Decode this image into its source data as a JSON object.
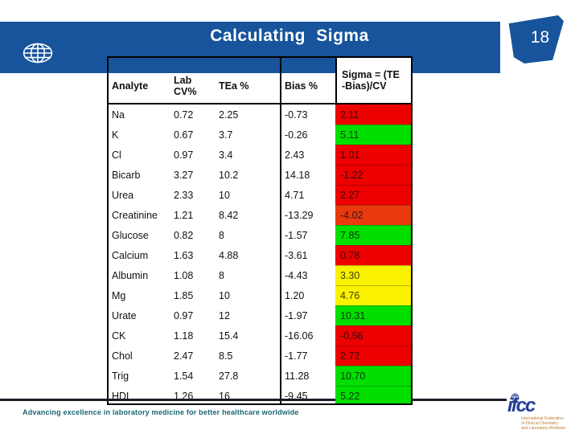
{
  "slide": {
    "title": "Calculating Sigma",
    "page_number": "18",
    "footer_text": "Advancing excellence in laboratory medicine for better healthcare worldwide"
  },
  "logo": {
    "wordmark": "ifcc",
    "tagline_line1": "International Federation",
    "tagline_line2": "of Clinical Chemistry",
    "tagline_line3": "and Laboratory Medicine"
  },
  "colors": {
    "band_blue": "#17549B",
    "logo_blue": "#243F96",
    "footer_teal": "#176572",
    "red": "#EE0000",
    "orangered": "#E83A0E",
    "green": "#00DF00",
    "yellow": "#FBF200"
  },
  "table": {
    "headers": [
      "Analyte",
      "Lab\nCV%",
      "TEa %",
      "Bias %",
      "Sigma = (TE\n-Bias)/CV"
    ],
    "rows": [
      [
        "Na",
        "0.72",
        "2.25",
        "-0.73",
        "2.11",
        "red"
      ],
      [
        "K",
        "0.67",
        "3.7",
        "-0.26",
        "5.11",
        "green"
      ],
      [
        "Cl",
        "0.97",
        "3.4",
        "2.43",
        "1.01",
        "red"
      ],
      [
        "Bicarb",
        "3.27",
        "10.2",
        "14.18",
        "-1.22",
        "red"
      ],
      [
        "Urea",
        "2.33",
        "10",
        "4.71",
        "2.27",
        "red"
      ],
      [
        "Creatinine",
        "1.21",
        "8.42",
        "-13.29",
        "-4.02",
        "orangered"
      ],
      [
        "Glucose",
        "0.82",
        "8",
        "-1.57",
        "7.85",
        "green"
      ],
      [
        "Calcium",
        "1.63",
        "4.88",
        "-3.61",
        "0.78",
        "red"
      ],
      [
        "Albumin",
        "1.08",
        "8",
        "-4.43",
        "3.30",
        "yellow"
      ],
      [
        "Mg",
        "1.85",
        "10",
        "1.20",
        "4.76",
        "yellow"
      ],
      [
        "Urate",
        "0.97",
        "12",
        "-1.97",
        "10.31",
        "green"
      ],
      [
        "CK",
        "1.18",
        "15.4",
        "-16.06",
        "-0.56",
        "red"
      ],
      [
        "Chol",
        "2.47",
        "8.5",
        "-1.77",
        "2.72",
        "red"
      ],
      [
        "Trig",
        "1.54",
        "27.8",
        "11.28",
        "10.70",
        "green"
      ],
      [
        "HDL",
        "1.26",
        "16",
        "-9.45",
        "5.22",
        "green"
      ]
    ]
  }
}
